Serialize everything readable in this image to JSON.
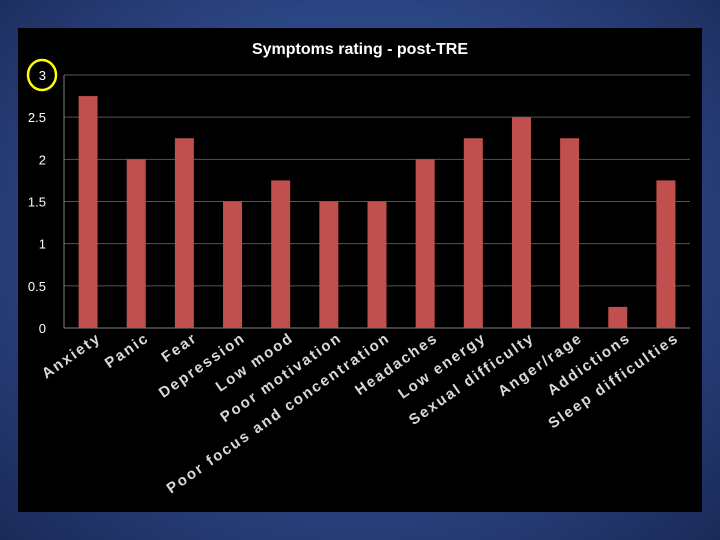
{
  "chart_data": {
    "type": "bar",
    "title": "Symptoms rating - post-TRE",
    "xlabel": "",
    "ylabel": "",
    "ylim": [
      0,
      3
    ],
    "yticks": [
      "0",
      "0.5",
      "1",
      "1.5",
      "2",
      "2.5",
      "3"
    ],
    "grid": true,
    "legend": "none",
    "categories": [
      "Anxiety",
      "Panic",
      "Fear",
      "Depression",
      "Low mood",
      "Poor motivation",
      "Poor focus and concentration",
      "Headaches",
      "Low energy",
      "Sexual difficulty",
      "Anger/rage",
      "Addictions",
      "Sleep difficulties"
    ],
    "values": [
      2.75,
      2,
      2.25,
      1.5,
      1.75,
      1.5,
      1.5,
      2,
      2.25,
      2.5,
      2.25,
      0.25,
      1.75
    ],
    "bar_color": "#c0504d",
    "highlight_tick": "3",
    "highlight_color": "#ffff00"
  }
}
